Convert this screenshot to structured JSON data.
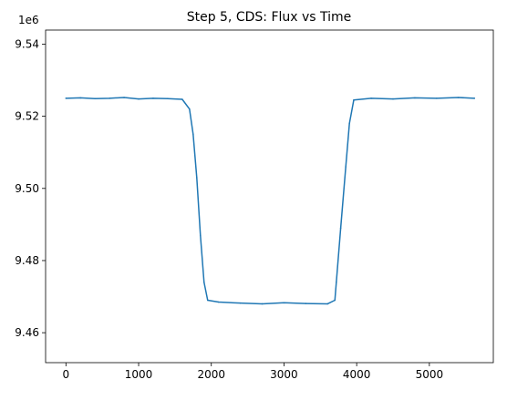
{
  "chart_data": {
    "type": "line",
    "title": "Step 5, CDS: Flux vs Time",
    "xlabel": "",
    "ylabel": "",
    "y_offset_label": "1e6",
    "y_scale": 1000000,
    "xlim": [
      -280,
      5880
    ],
    "ylim": [
      9451700,
      9543900
    ],
    "x_ticks": [
      0,
      1000,
      2000,
      3000,
      4000,
      5000
    ],
    "x_tick_labels": [
      "0",
      "1000",
      "2000",
      "3000",
      "4000",
      "5000"
    ],
    "y_ticks": [
      9460000,
      9480000,
      9500000,
      9520000,
      9540000
    ],
    "y_tick_labels": [
      "9.46",
      "9.48",
      "9.50",
      "9.52",
      "9.54"
    ],
    "grid": false,
    "legend": "none",
    "line_color": "#1f77b4",
    "series": [
      {
        "x": [
          0,
          200,
          400,
          600,
          800,
          1000,
          1200,
          1400,
          1600,
          1700,
          1750,
          1800,
          1850,
          1900,
          1950,
          2100,
          2400,
          2700,
          3000,
          3300,
          3600,
          3700,
          3720,
          3780,
          3850,
          3900,
          3960,
          4200,
          4500,
          4800,
          5100,
          5400,
          5620
        ],
        "values": [
          9525000,
          9525100,
          9524900,
          9525000,
          9525200,
          9524800,
          9525000,
          9524900,
          9524700,
          9522000,
          9515000,
          9503000,
          9487000,
          9474000,
          9469000,
          9468500,
          9468200,
          9468000,
          9468300,
          9468100,
          9468000,
          9469000,
          9474000,
          9489000,
          9506000,
          9518000,
          9524500,
          9525000,
          9524800,
          9525100,
          9525000,
          9525200,
          9525000
        ]
      }
    ]
  }
}
